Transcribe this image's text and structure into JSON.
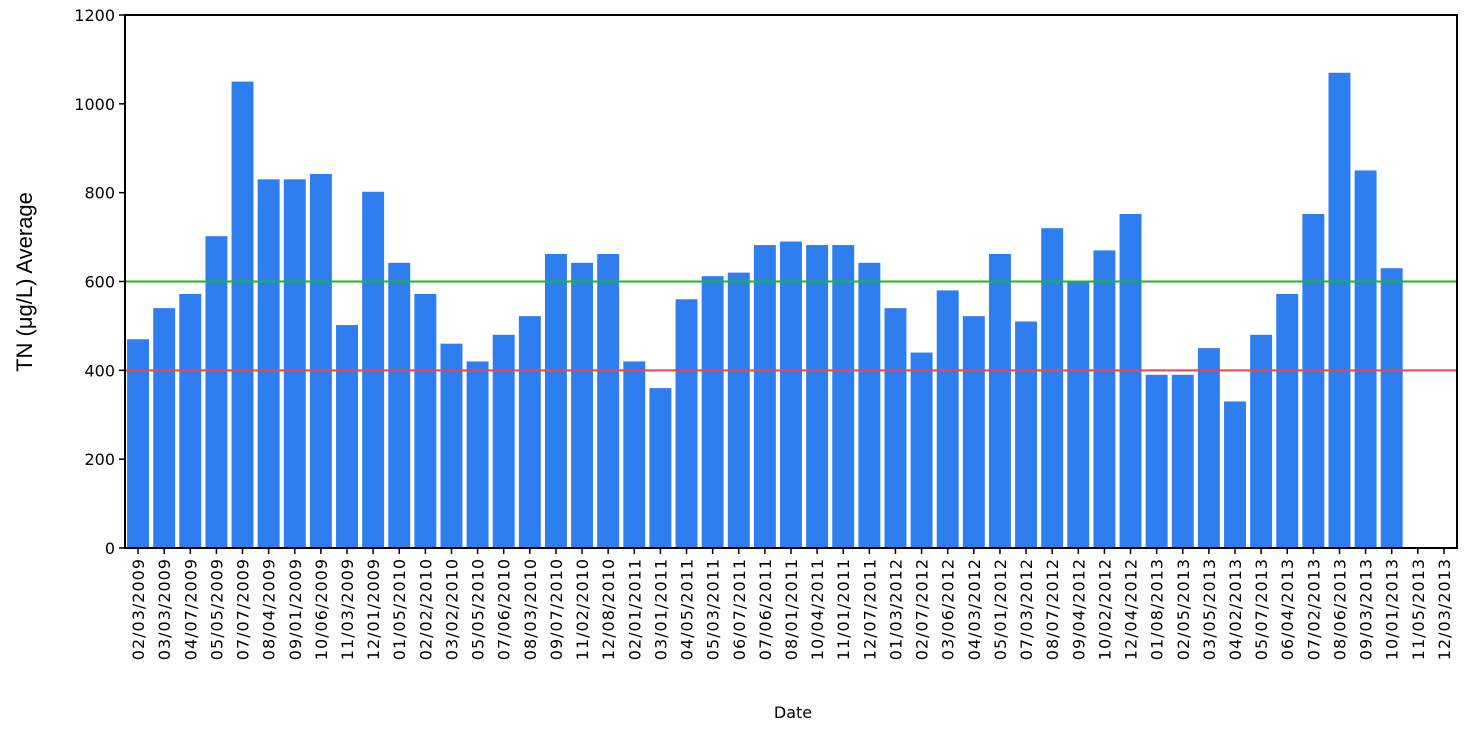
{
  "chart_data": {
    "type": "bar",
    "xlabel": "Date",
    "ylabel": "TN (μg/L) Average",
    "categories": [
      "02/03/2009",
      "03/03/2009",
      "04/07/2009",
      "05/05/2009",
      "07/07/2009",
      "08/04/2009",
      "09/01/2009",
      "10/06/2009",
      "11/03/2009",
      "12/01/2009",
      "01/05/2010",
      "02/02/2010",
      "03/02/2010",
      "05/05/2010",
      "07/06/2010",
      "08/03/2010",
      "09/07/2010",
      "11/02/2010",
      "12/08/2010",
      "02/01/2011",
      "03/01/2011",
      "04/05/2011",
      "05/03/2011",
      "06/07/2011",
      "07/06/2011",
      "08/01/2011",
      "10/04/2011",
      "11/01/2011",
      "12/07/2011",
      "01/03/2012",
      "02/07/2012",
      "03/06/2012",
      "04/03/2012",
      "05/01/2012",
      "07/03/2012",
      "08/07/2012",
      "09/04/2012",
      "10/02/2012",
      "12/04/2012",
      "01/08/2013",
      "02/05/2013",
      "03/05/2013",
      "04/02/2013",
      "05/07/2013",
      "06/04/2013",
      "07/02/2013",
      "08/06/2013",
      "09/03/2013",
      "10/01/2013",
      "11/05/2013",
      "12/03/2013"
    ],
    "values": [
      470,
      540,
      572,
      702,
      1050,
      830,
      830,
      842,
      502,
      802,
      642,
      572,
      460,
      420,
      480,
      522,
      662,
      642,
      662,
      420,
      360,
      560,
      612,
      620,
      682,
      690,
      682,
      682,
      642,
      540,
      440,
      580,
      522,
      662,
      510,
      720,
      600,
      670,
      752,
      390,
      390,
      450,
      330,
      480,
      572,
      752,
      1070,
      850,
      630,
      null,
      null
    ],
    "color": "#2f7ef0",
    "ylim": [
      0,
      1200
    ],
    "yticks": [
      0,
      200,
      400,
      600,
      800,
      1000,
      1200
    ],
    "reference_lines": [
      {
        "value": 600,
        "color": "#1fb526"
      },
      {
        "value": 400,
        "color": "#f0434f"
      }
    ]
  }
}
